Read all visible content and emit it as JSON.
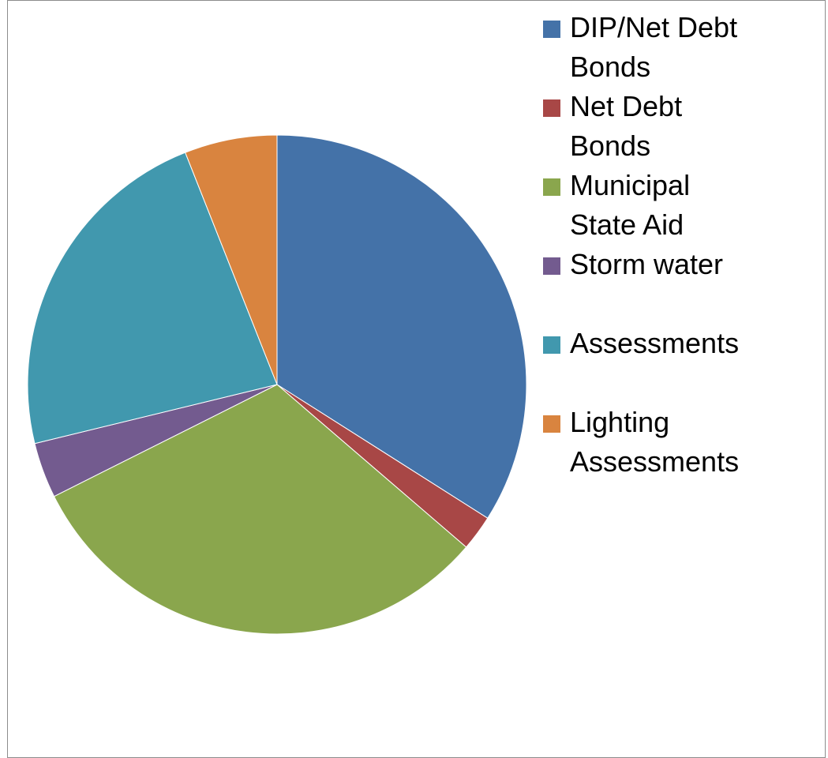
{
  "chart_data": {
    "type": "pie",
    "title": "",
    "start_angle_deg": 0,
    "direction": "clockwise",
    "legend_position": "right",
    "slices": [
      {
        "label": "DIP/Net Debt Bonds",
        "value": 34.0,
        "color": "#4472a8"
      },
      {
        "label": "Net Debt Bonds",
        "value": 2.3,
        "color": "#a84746"
      },
      {
        "label": "Municipal State Aid",
        "value": 31.3,
        "color": "#8aa64d"
      },
      {
        "label": "Storm water",
        "value": 3.6,
        "color": "#735b8f"
      },
      {
        "label": "Assessments",
        "value": 22.8,
        "color": "#4198ae"
      },
      {
        "label": "Lighting Assessments",
        "value": 6.0,
        "color": "#d9843f"
      }
    ]
  }
}
